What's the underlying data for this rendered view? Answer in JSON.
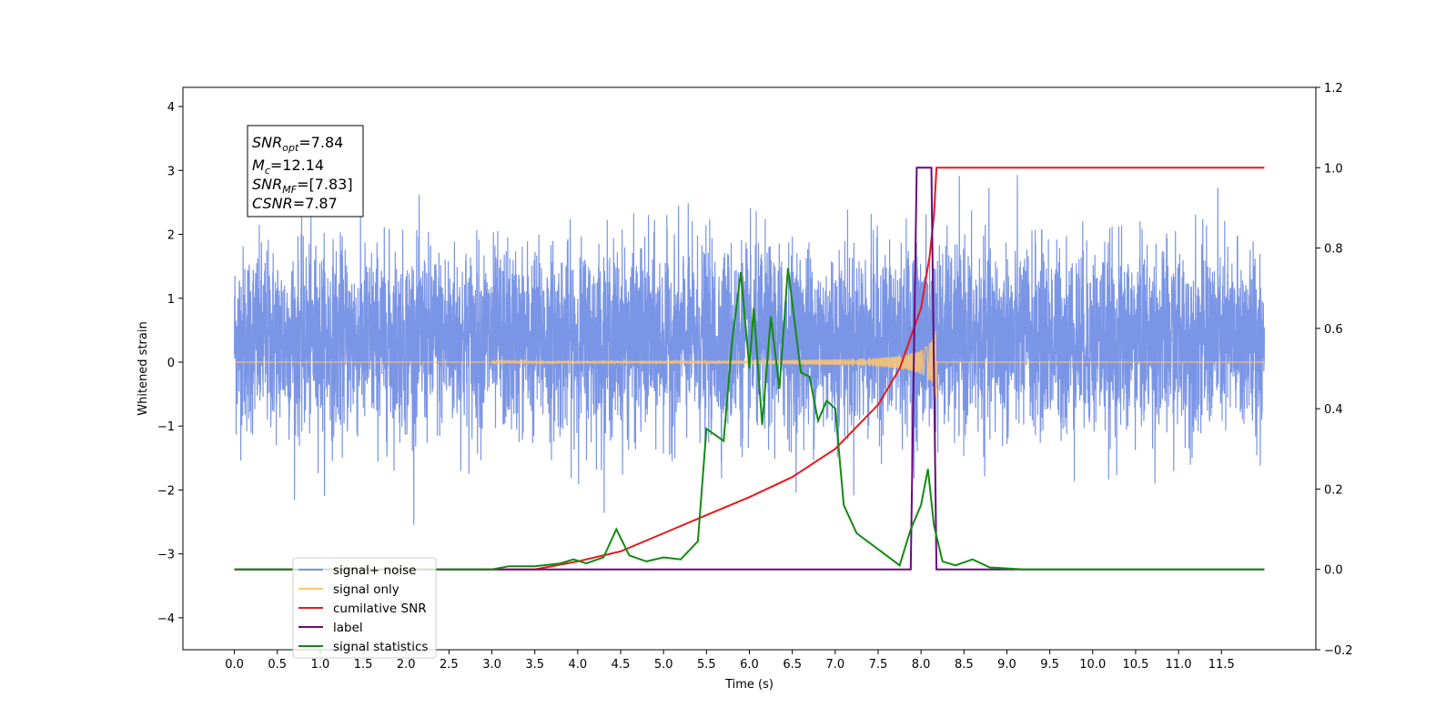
{
  "chart_data": {
    "type": "line",
    "xlabel": "Time (s)",
    "ylabel": "Whitened strain",
    "xlim": [
      -0.6,
      12.6
    ],
    "ylim": [
      -4.5,
      4.3
    ],
    "y2lim": [
      -0.2,
      1.2
    ],
    "x_ticks": [
      "0.0",
      "0.5",
      "1.0",
      "1.5",
      "2.0",
      "2.5",
      "3.0",
      "3.5",
      "4.0",
      "4.5",
      "5.0",
      "5.5",
      "6.0",
      "6.5",
      "7.0",
      "7.5",
      "8.0",
      "8.5",
      "9.0",
      "9.5",
      "10.0",
      "10.5",
      "11.0",
      "11.5"
    ],
    "y_ticks": [
      "4",
      "3",
      "2",
      "1",
      "0",
      "−1",
      "−2",
      "−3",
      "−4"
    ],
    "y2_ticks": [
      "1.2",
      "1.0",
      "0.8",
      "0.6",
      "0.4",
      "0.2",
      "0.0",
      "−0.2"
    ],
    "annotation": {
      "snr_opt": {
        "base": "SNR",
        "sub": "opt",
        "value": "=7.84"
      },
      "mc": {
        "base": "M",
        "sub": "c",
        "value": "=12.14"
      },
      "snr_mf": {
        "base": "SNR",
        "sub": "MF",
        "value": "=[7.83]"
      },
      "csnr": {
        "base": "CSNR",
        "value": "=7.87"
      }
    },
    "series": [
      {
        "name": "signal+ noise",
        "color": "#7b95e6",
        "axis": "left",
        "noise_sigma": 0.72,
        "x_range": [
          0.0,
          12.0
        ]
      },
      {
        "name": "signal only",
        "color": "#ffc56e",
        "axis": "left",
        "chirp_start": 3.0,
        "chirp_end": 8.18,
        "peak_amplitude": 0.6
      },
      {
        "name": "cumilative SNR",
        "color": "#e41a1c",
        "axis": "right",
        "points": [
          [
            0.0,
            0.0
          ],
          [
            3.5,
            0.0
          ],
          [
            4.0,
            0.02
          ],
          [
            4.5,
            0.045
          ],
          [
            5.0,
            0.09
          ],
          [
            5.5,
            0.135
          ],
          [
            6.0,
            0.18
          ],
          [
            6.5,
            0.23
          ],
          [
            7.0,
            0.3
          ],
          [
            7.5,
            0.41
          ],
          [
            7.75,
            0.5
          ],
          [
            8.0,
            0.65
          ],
          [
            8.1,
            0.78
          ],
          [
            8.15,
            0.88
          ],
          [
            8.18,
            1.0
          ],
          [
            12.0,
            1.0
          ]
        ]
      },
      {
        "name": "label",
        "color": "#6a0a80",
        "axis": "right",
        "points": [
          [
            0.0,
            0.0
          ],
          [
            7.88,
            0.0
          ],
          [
            7.95,
            1.0
          ],
          [
            8.12,
            1.0
          ],
          [
            8.18,
            0.0
          ],
          [
            12.0,
            0.0
          ]
        ]
      },
      {
        "name": "signal statistics",
        "color": "#138a13",
        "axis": "right",
        "points": [
          [
            0.0,
            0.0
          ],
          [
            3.0,
            0.0
          ],
          [
            3.2,
            0.008
          ],
          [
            3.5,
            0.008
          ],
          [
            3.8,
            0.015
          ],
          [
            3.95,
            0.025
          ],
          [
            4.1,
            0.015
          ],
          [
            4.3,
            0.03
          ],
          [
            4.45,
            0.1
          ],
          [
            4.6,
            0.035
          ],
          [
            4.8,
            0.02
          ],
          [
            5.0,
            0.03
          ],
          [
            5.2,
            0.025
          ],
          [
            5.4,
            0.07
          ],
          [
            5.5,
            0.35
          ],
          [
            5.7,
            0.32
          ],
          [
            5.8,
            0.57
          ],
          [
            5.9,
            0.74
          ],
          [
            6.0,
            0.5
          ],
          [
            6.05,
            0.65
          ],
          [
            6.15,
            0.36
          ],
          [
            6.25,
            0.63
          ],
          [
            6.35,
            0.45
          ],
          [
            6.45,
            0.75
          ],
          [
            6.6,
            0.49
          ],
          [
            6.7,
            0.48
          ],
          [
            6.8,
            0.37
          ],
          [
            6.9,
            0.42
          ],
          [
            7.0,
            0.4
          ],
          [
            7.1,
            0.16
          ],
          [
            7.25,
            0.09
          ],
          [
            7.5,
            0.05
          ],
          [
            7.75,
            0.01
          ],
          [
            7.88,
            0.1
          ],
          [
            8.0,
            0.16
          ],
          [
            8.08,
            0.25
          ],
          [
            8.15,
            0.11
          ],
          [
            8.25,
            0.02
          ],
          [
            8.4,
            0.01
          ],
          [
            8.6,
            0.025
          ],
          [
            8.8,
            0.005
          ],
          [
            9.2,
            0.0
          ],
          [
            12.0,
            0.0
          ]
        ]
      }
    ],
    "legend": {
      "position": "lower-left",
      "entries": [
        {
          "label": "signal+ noise",
          "color": "#7b95e6"
        },
        {
          "label": "signal only",
          "color": "#ffc56e"
        },
        {
          "label": "cumilative SNR",
          "color": "#e41a1c"
        },
        {
          "label": "label",
          "color": "#6a0a80"
        },
        {
          "label": "signal statistics",
          "color": "#138a13"
        }
      ]
    }
  }
}
